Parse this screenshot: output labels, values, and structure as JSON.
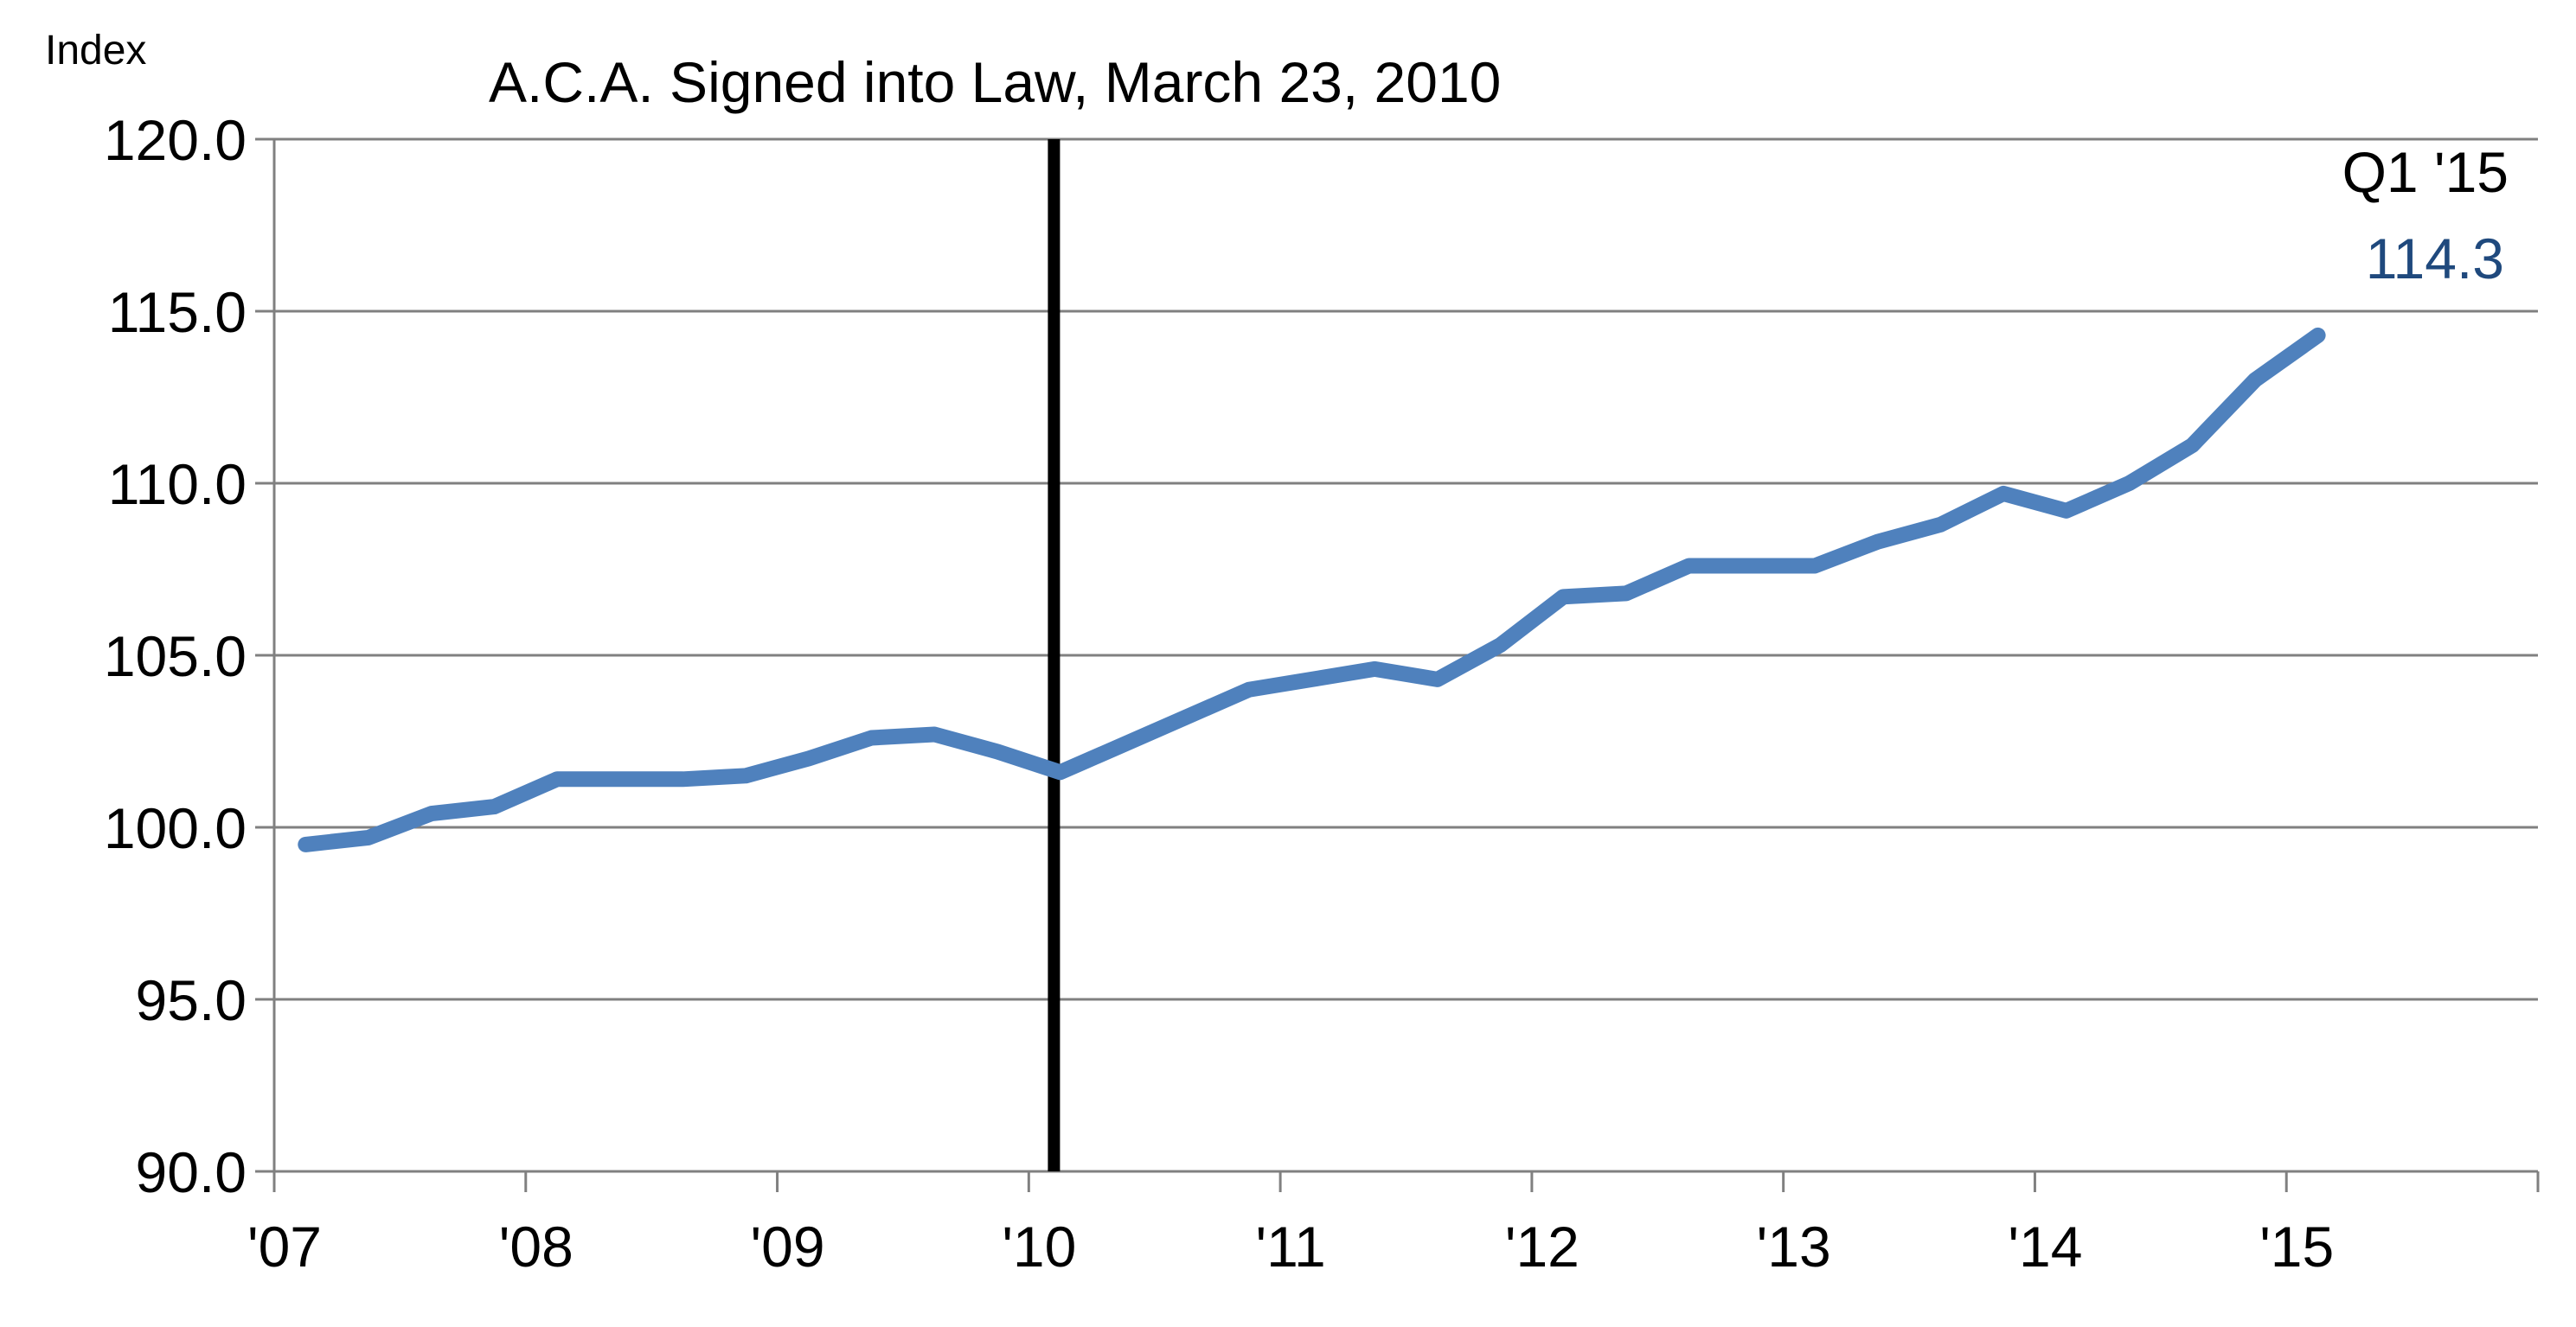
{
  "chart_data": {
    "type": "line",
    "ylabel": "Index",
    "ylim": [
      90,
      120
    ],
    "xlim": [
      2007,
      2016
    ],
    "y_ticks": [
      "90.0",
      "95.0",
      "100.0",
      "105.0",
      "110.0",
      "115.0",
      "120.0"
    ],
    "x_ticks": [
      "'07",
      "'08",
      "'09",
      "'10",
      "'11",
      "'12",
      "'13",
      "'14",
      "'15"
    ],
    "grid": true,
    "legend": "none",
    "event_marker": {
      "x": 2010.1,
      "label": "A.C.A. Signed into Law, March 23, 2010"
    },
    "end_label": {
      "period": "Q1 '15",
      "value": "114.3"
    },
    "colors": {
      "series": "#4f81bd",
      "end_value": "#1f497d",
      "marker_line": "#000000",
      "grid": "#808080",
      "text": "#000000"
    },
    "series": [
      {
        "x": [
          2007.125,
          2007.375,
          2007.625,
          2007.875,
          2008.125,
          2008.375,
          2008.625,
          2008.875,
          2009.125,
          2009.375,
          2009.625,
          2009.875,
          2010.125,
          2010.375,
          2010.625,
          2010.875,
          2011.125,
          2011.375,
          2011.625,
          2011.875,
          2012.125,
          2012.375,
          2012.625,
          2012.875,
          2013.125,
          2013.375,
          2013.625,
          2013.875,
          2014.125,
          2014.375,
          2014.625,
          2014.875,
          2015.125
        ],
        "values": [
          99.5,
          99.7,
          100.4,
          100.6,
          101.4,
          101.4,
          101.4,
          101.5,
          102.0,
          102.6,
          102.7,
          102.2,
          101.6,
          102.4,
          103.2,
          104.0,
          104.3,
          104.6,
          104.3,
          105.3,
          106.7,
          106.8,
          107.6,
          107.6,
          107.6,
          108.3,
          108.8,
          109.7,
          109.2,
          110.0,
          111.1,
          113.0,
          114.3
        ]
      }
    ]
  }
}
